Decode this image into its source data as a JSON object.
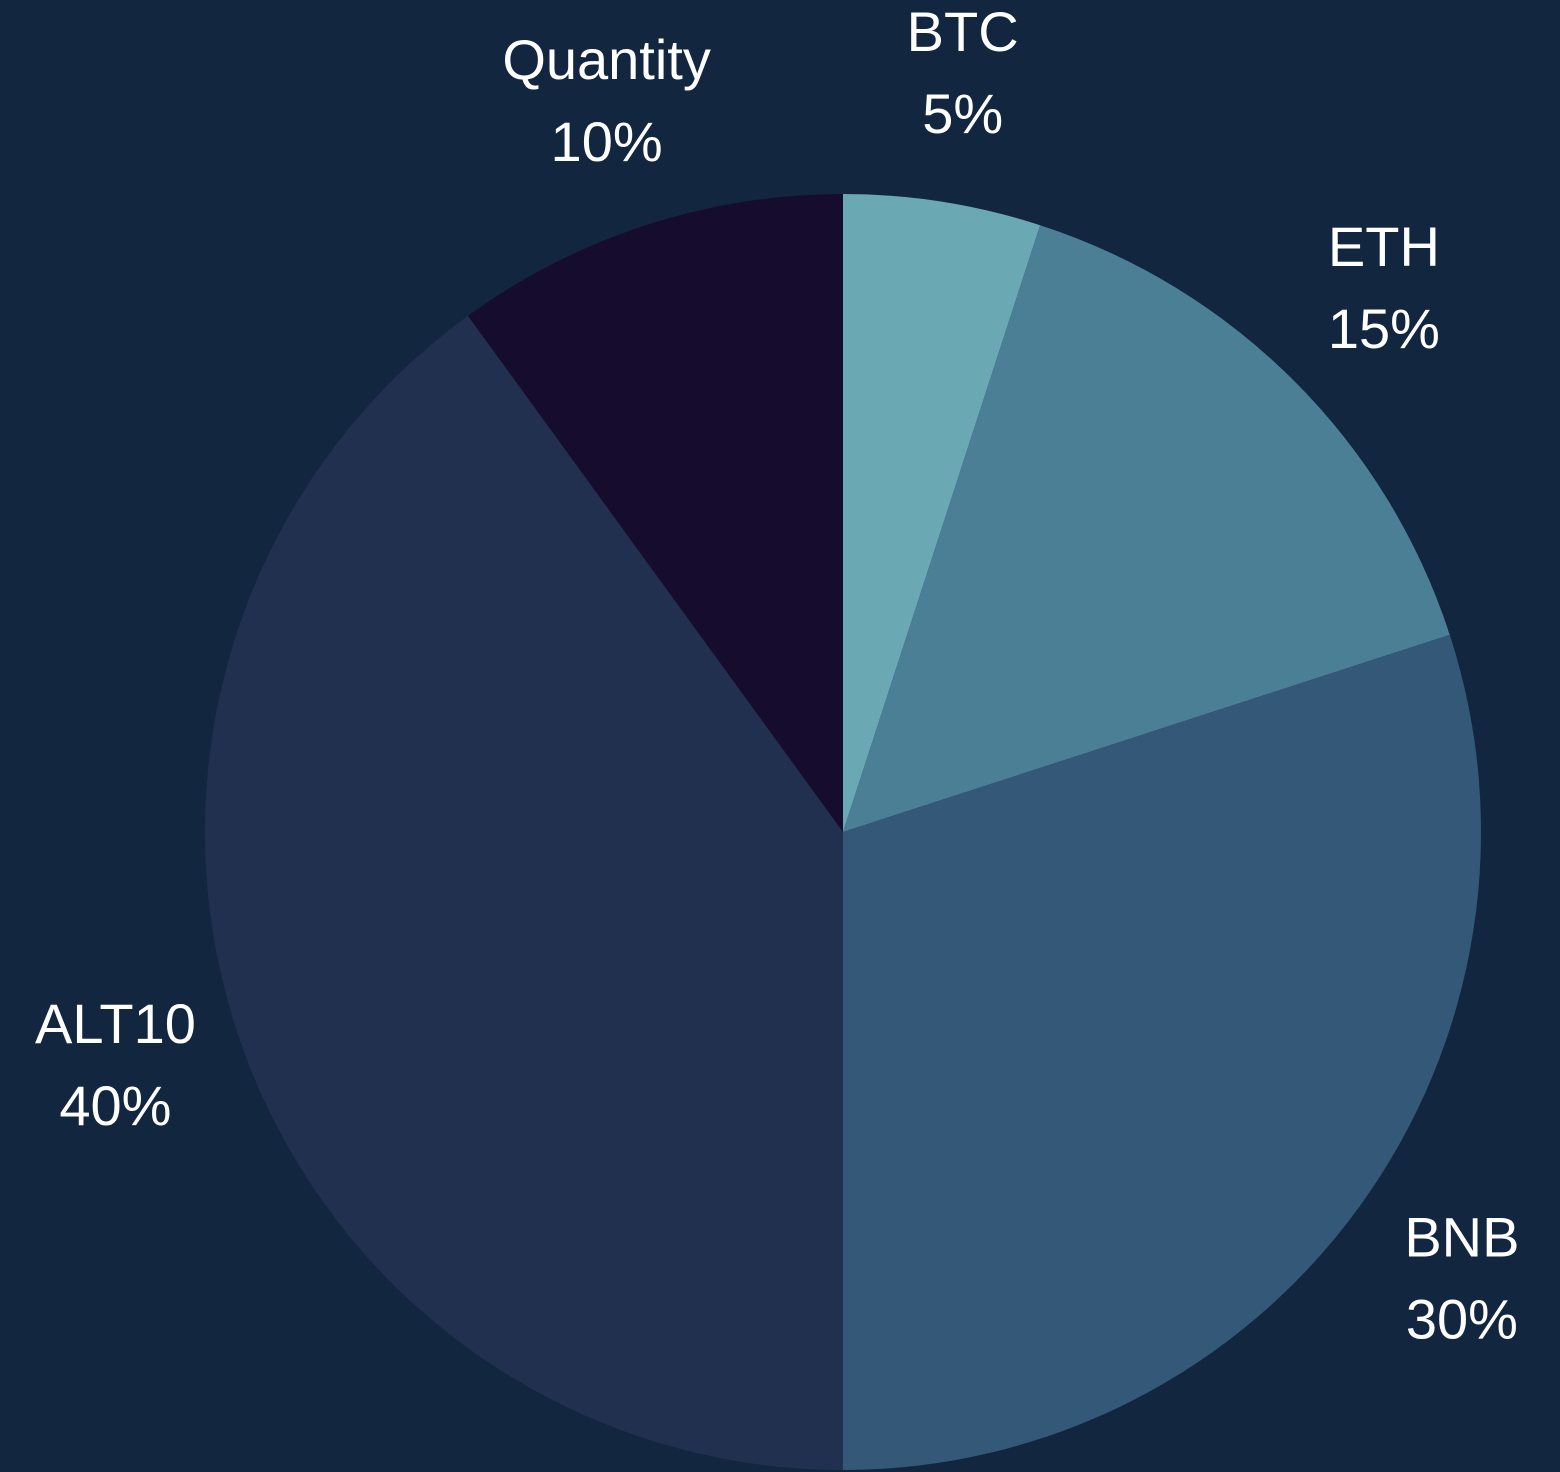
{
  "chart_data": {
    "type": "pie",
    "categories": [
      "BTC",
      "ETH",
      "BNB",
      "ALT10",
      "Quantity"
    ],
    "values": [
      5,
      15,
      30,
      40,
      10
    ],
    "value_labels": [
      "5%",
      "15%",
      "30%",
      "40%",
      "10%"
    ],
    "colors": [
      "#6aa9b3",
      "#4a7f96",
      "#335878",
      "#22304f",
      "#160c2d"
    ]
  }
}
